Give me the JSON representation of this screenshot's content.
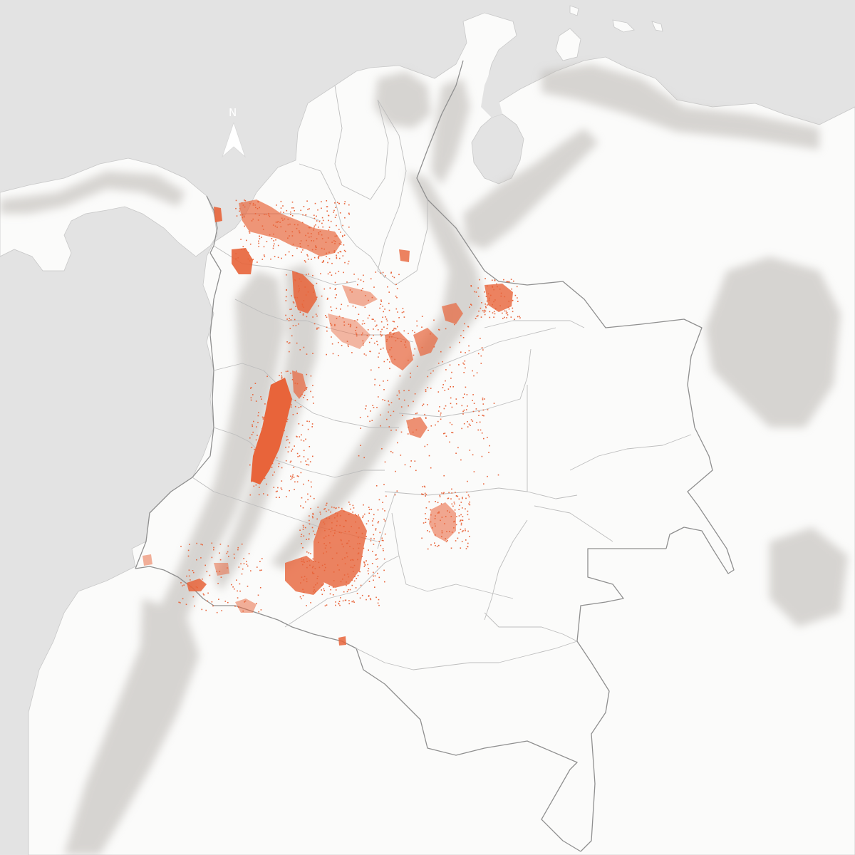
{
  "map": {
    "north_arrow_label": "N",
    "colors": {
      "ocean": "#e3e3e3",
      "land": "#fbfbfa",
      "relief_shadow": "#b9b5b0",
      "border_national": "#8f8f8f",
      "border_department": "#bdbdbd",
      "data_points": "#e8643a"
    },
    "layers": [
      "ocean",
      "land",
      "terrain-relief",
      "national-borders",
      "department-borders",
      "orange-data-points",
      "north-arrow"
    ]
  }
}
